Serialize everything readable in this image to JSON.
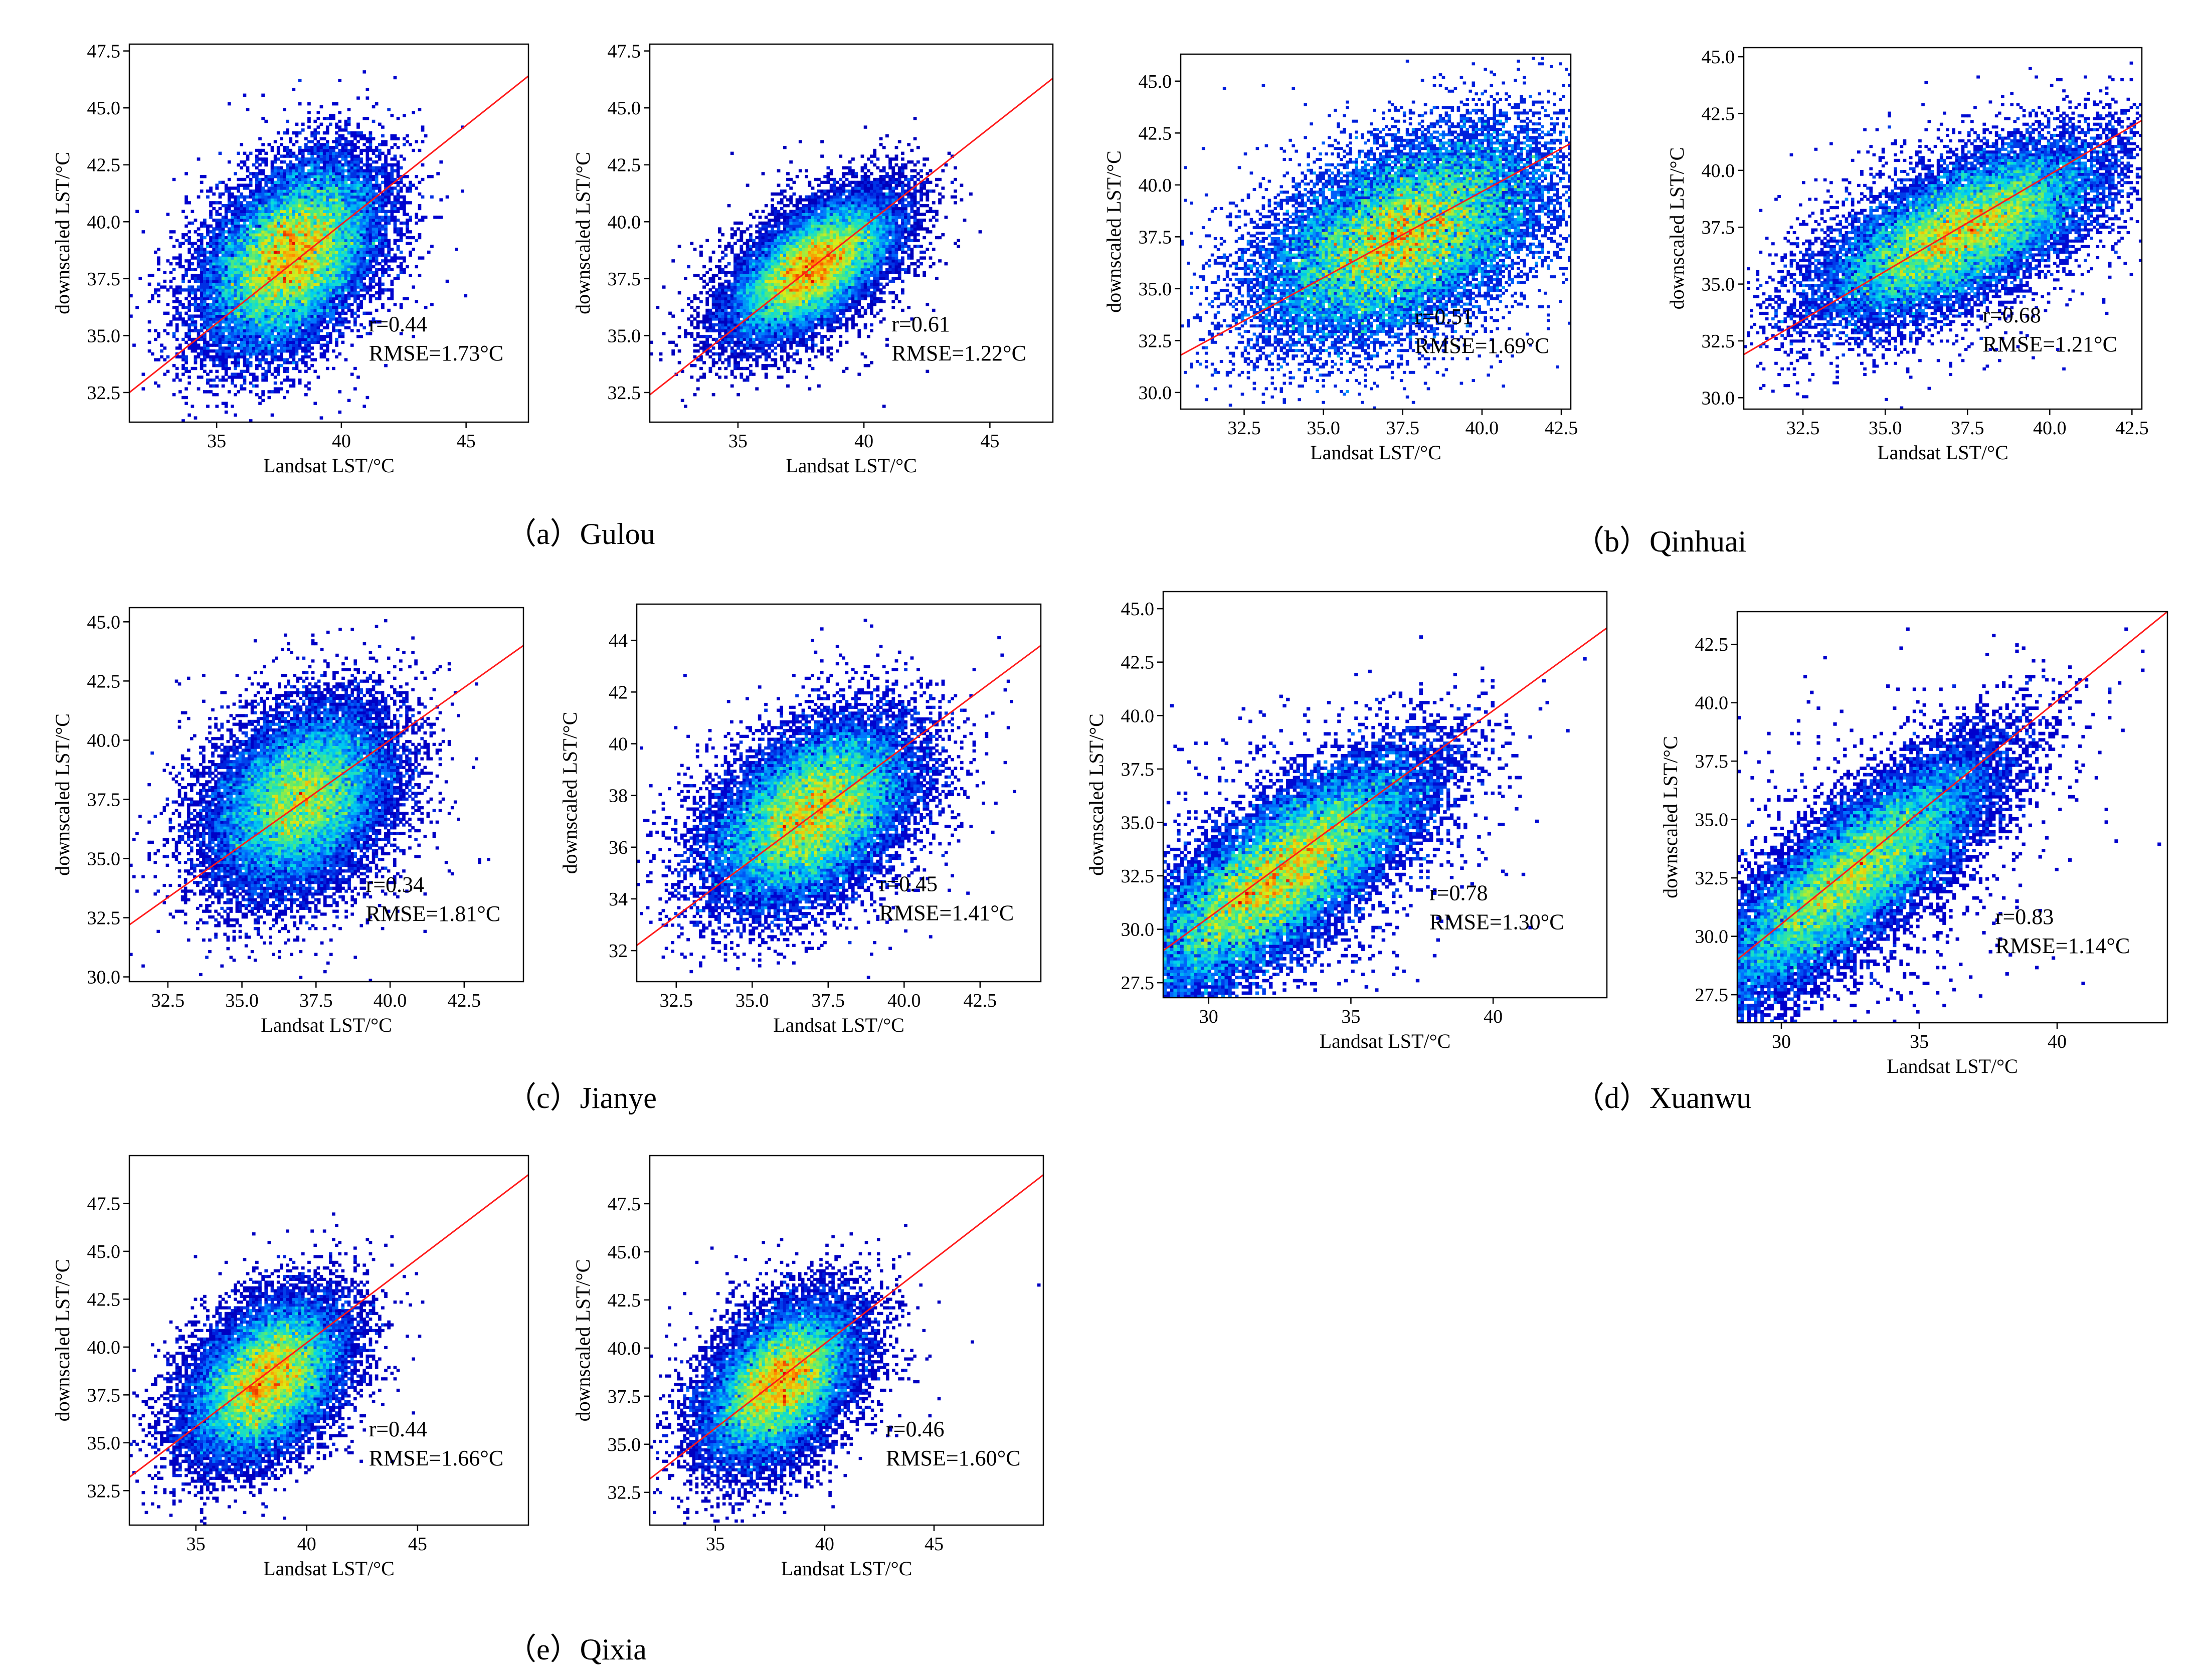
{
  "figure": {
    "group_captions": [
      "（a）Gulou",
      "（b）Qinhuai",
      "（c）Jianye",
      "（d）Xuanwu",
      "（e）Qixia"
    ]
  },
  "chart_data": [
    {
      "type": "scatter",
      "district": "Gulou",
      "xlabel": "Landsat LST/°C",
      "ylabel": "downscaled LST/°C",
      "xlim": [
        31.5,
        47.5
      ],
      "ylim": [
        31.2,
        47.8
      ],
      "xticks": [
        35,
        40,
        45
      ],
      "xtick_labels": [
        "35",
        "40",
        "45"
      ],
      "yticks": [
        32.5,
        35,
        37.5,
        40,
        42.5,
        45,
        47.5
      ],
      "ytick_labels": [
        "32.5",
        "35.0",
        "37.5",
        "40.0",
        "42.5",
        "45.0",
        "47.5"
      ],
      "center": [
        38.0,
        38.5
      ],
      "spread": [
        1.7,
        2.0
      ],
      "r": 0.44,
      "fit_line": {
        "x": [
          31.5,
          47.5
        ],
        "y": [
          32.5,
          46.4
        ]
      },
      "annotation": [
        "r=0.44",
        "RMSE=1.73°C"
      ]
    },
    {
      "type": "scatter",
      "district": "Gulou",
      "xlabel": "Landsat LST/°C",
      "ylabel": "downscaled LST/°C",
      "xlim": [
        31.5,
        47.5
      ],
      "ylim": [
        31.2,
        47.8
      ],
      "xticks": [
        35,
        40,
        45
      ],
      "xtick_labels": [
        "35",
        "40",
        "45"
      ],
      "yticks": [
        32.5,
        35,
        37.5,
        40,
        42.5,
        45,
        47.5
      ],
      "ytick_labels": [
        "32.5",
        "35.0",
        "37.5",
        "40.0",
        "42.5",
        "45.0",
        "47.5"
      ],
      "center": [
        38.0,
        38.0
      ],
      "spread": [
        1.6,
        1.5
      ],
      "r": 0.61,
      "fit_line": {
        "x": [
          31.5,
          47.5
        ],
        "y": [
          32.4,
          46.3
        ]
      },
      "annotation": [
        "r=0.61",
        "RMSE=1.22°C"
      ]
    },
    {
      "type": "scatter",
      "district": "Qinhuai",
      "xlabel": "Landsat LST/°C",
      "ylabel": "downscaled LST/°C",
      "xlim": [
        30.5,
        42.8
      ],
      "ylim": [
        29.2,
        46.3
      ],
      "xticks": [
        32.5,
        35,
        37.5,
        40,
        42.5
      ],
      "xtick_labels": [
        "32.5",
        "35.0",
        "37.5",
        "40.0",
        "42.5"
      ],
      "yticks": [
        30,
        32.5,
        35,
        37.5,
        40,
        42.5,
        45
      ],
      "ytick_labels": [
        "30.0",
        "32.5",
        "35.0",
        "37.5",
        "40.0",
        "42.5",
        "45.0"
      ],
      "center": [
        37.5,
        37.5
      ],
      "spread": [
        2.2,
        2.4
      ],
      "r": 0.51,
      "fit_line": {
        "x": [
          30.5,
          42.8
        ],
        "y": [
          31.8,
          42.0
        ]
      },
      "annotation": [
        "r=0.51",
        "RMSE=1.69°C"
      ]
    },
    {
      "type": "scatter",
      "district": "Qinhuai",
      "xlabel": "Landsat LST/°C",
      "ylabel": "downscaled LST/°C",
      "xlim": [
        30.7,
        42.8
      ],
      "ylim": [
        29.5,
        45.4
      ],
      "xticks": [
        32.5,
        35,
        37.5,
        40,
        42.5
      ],
      "xtick_labels": [
        "32.5",
        "35.0",
        "37.5",
        "40.0",
        "42.5"
      ],
      "yticks": [
        30,
        32.5,
        35,
        37.5,
        40,
        42.5,
        45
      ],
      "ytick_labels": [
        "30.0",
        "32.5",
        "35.0",
        "37.5",
        "40.0",
        "42.5",
        "45.0"
      ],
      "center": [
        37.3,
        37.3
      ],
      "spread": [
        2.1,
        1.9
      ],
      "r": 0.68,
      "fit_line": {
        "x": [
          30.7,
          42.8
        ],
        "y": [
          31.9,
          42.2
        ]
      },
      "annotation": [
        "r=0.68",
        "RMSE=1.21°C"
      ]
    },
    {
      "type": "scatter",
      "district": "Jianye",
      "xlabel": "Landsat LST/°C",
      "ylabel": "downscaled LST/°C",
      "xlim": [
        31.2,
        44.5
      ],
      "ylim": [
        29.8,
        45.6
      ],
      "xticks": [
        32.5,
        35,
        37.5,
        40,
        42.5
      ],
      "xtick_labels": [
        "32.5",
        "35.0",
        "37.5",
        "40.0",
        "42.5"
      ],
      "yticks": [
        30,
        32.5,
        35,
        37.5,
        40,
        42.5,
        45
      ],
      "ytick_labels": [
        "30.0",
        "32.5",
        "35.0",
        "37.5",
        "40.0",
        "42.5",
        "45.0"
      ],
      "center": [
        37.0,
        37.5
      ],
      "spread": [
        1.5,
        1.9
      ],
      "r": 0.34,
      "fit_line": {
        "x": [
          31.2,
          44.5
        ],
        "y": [
          32.2,
          44.0
        ]
      },
      "annotation": [
        "r=0.34",
        "RMSE=1.81°C"
      ]
    },
    {
      "type": "scatter",
      "district": "Jianye",
      "xlabel": "Landsat LST/°C",
      "ylabel": "downscaled LST/°C",
      "xlim": [
        31.2,
        44.5
      ],
      "ylim": [
        30.8,
        45.4
      ],
      "xticks": [
        32.5,
        35,
        37.5,
        40,
        42.5
      ],
      "xtick_labels": [
        "32.5",
        "35.0",
        "37.5",
        "40.0",
        "42.5"
      ],
      "yticks": [
        32,
        34,
        36,
        38,
        40,
        42,
        44
      ],
      "ytick_labels": [
        "32",
        "34",
        "36",
        "38",
        "40",
        "42",
        "44"
      ],
      "center": [
        37.0,
        37.3
      ],
      "spread": [
        1.6,
        1.7
      ],
      "r": 0.45,
      "fit_line": {
        "x": [
          31.2,
          44.5
        ],
        "y": [
          32.2,
          43.8
        ]
      },
      "annotation": [
        "r=0.45",
        "RMSE=1.41°C"
      ]
    },
    {
      "type": "scatter",
      "district": "Xuanwu",
      "xlabel": "Landsat LST/°C",
      "ylabel": "downscaled LST/°C",
      "xlim": [
        28.4,
        44.0
      ],
      "ylim": [
        26.8,
        45.8
      ],
      "xticks": [
        30,
        35,
        40
      ],
      "xtick_labels": [
        "30",
        "35",
        "40"
      ],
      "yticks": [
        27.5,
        30,
        32.5,
        35,
        37.5,
        40,
        42.5,
        45
      ],
      "ytick_labels": [
        "27.5",
        "30.0",
        "32.5",
        "35.0",
        "37.5",
        "40.0",
        "42.5",
        "45.0"
      ],
      "center": [
        32.5,
        32.5
      ],
      "spread": [
        2.5,
        2.7
      ],
      "r": 0.78,
      "fit_line": {
        "x": [
          28.4,
          44.0
        ],
        "y": [
          29.0,
          44.1
        ]
      },
      "annotation": [
        "r=0.78",
        "RMSE=1.30°C"
      ]
    },
    {
      "type": "scatter",
      "district": "Xuanwu",
      "xlabel": "Landsat LST/°C",
      "ylabel": "downscaled LST/°C",
      "xlim": [
        28.4,
        44.0
      ],
      "ylim": [
        26.3,
        43.9
      ],
      "xticks": [
        30,
        35,
        40
      ],
      "xtick_labels": [
        "30",
        "35",
        "40"
      ],
      "yticks": [
        27.5,
        30,
        32.5,
        35,
        37.5,
        40,
        42.5
      ],
      "ytick_labels": [
        "27.5",
        "30.0",
        "32.5",
        "35.0",
        "37.5",
        "40.0",
        "42.5"
      ],
      "center": [
        32.5,
        32.5
      ],
      "spread": [
        2.6,
        2.7
      ],
      "r": 0.83,
      "fit_line": {
        "x": [
          28.4,
          44.0
        ],
        "y": [
          29.0,
          43.9
        ]
      },
      "annotation": [
        "r=0.83",
        "RMSE=1.14°C"
      ]
    },
    {
      "type": "scatter",
      "district": "Qixia",
      "xlabel": "Landsat LST/°C",
      "ylabel": "downscaled LST/°C",
      "xlim": [
        32.0,
        50.0
      ],
      "ylim": [
        30.7,
        50.0
      ],
      "xticks": [
        35,
        40,
        45
      ],
      "xtick_labels": [
        "35",
        "40",
        "45"
      ],
      "yticks": [
        32.5,
        35,
        37.5,
        40,
        42.5,
        45,
        47.5
      ],
      "ytick_labels": [
        "32.5",
        "35.0",
        "37.5",
        "40.0",
        "42.5",
        "45.0",
        "47.5"
      ],
      "center": [
        38.2,
        38.3
      ],
      "spread": [
        1.7,
        2.0
      ],
      "r": 0.44,
      "fit_line": {
        "x": [
          32.0,
          50.0
        ],
        "y": [
          33.2,
          49.0
        ]
      },
      "annotation": [
        "r=0.44",
        "RMSE=1.66°C"
      ]
    },
    {
      "type": "scatter",
      "district": "Qixia",
      "xlabel": "Landsat LST/°C",
      "ylabel": "downscaled LST/°C",
      "xlim": [
        32.0,
        50.0
      ],
      "ylim": [
        30.8,
        50.0
      ],
      "xticks": [
        35,
        40,
        45
      ],
      "xtick_labels": [
        "35",
        "40",
        "45"
      ],
      "yticks": [
        32.5,
        35,
        37.5,
        40,
        42.5,
        45,
        47.5
      ],
      "ytick_labels": [
        "32.5",
        "35.0",
        "37.5",
        "40.0",
        "42.5",
        "45.0",
        "47.5"
      ],
      "center": [
        38.0,
        38.2
      ],
      "spread": [
        1.7,
        2.0
      ],
      "r": 0.46,
      "fit_line": {
        "x": [
          32.0,
          50.0
        ],
        "y": [
          33.2,
          49.0
        ]
      },
      "annotation": [
        "r=0.46",
        "RMSE=1.60°C"
      ]
    }
  ]
}
